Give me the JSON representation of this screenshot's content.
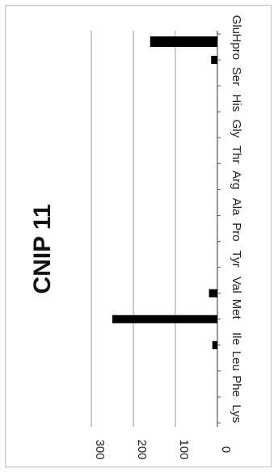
{
  "chart_data": {
    "type": "bar",
    "title": "CNIP 11",
    "orientation": "rotated",
    "categories": [
      "Glu",
      "Hpro",
      "Ser",
      "His",
      "Gly",
      "Thr",
      "Arg",
      "Ala",
      "Pro",
      "Tyr",
      "Val",
      "Met",
      "Ile",
      "Leu",
      "Phe",
      "Lys"
    ],
    "values": [
      160,
      15,
      0,
      0,
      0,
      0,
      0,
      0,
      0,
      0,
      20,
      250,
      12,
      0,
      0,
      0
    ],
    "ylim": [
      0,
      300
    ],
    "yticks": [
      0,
      100,
      200,
      300
    ],
    "grid": true,
    "bar_color": "#000000"
  }
}
